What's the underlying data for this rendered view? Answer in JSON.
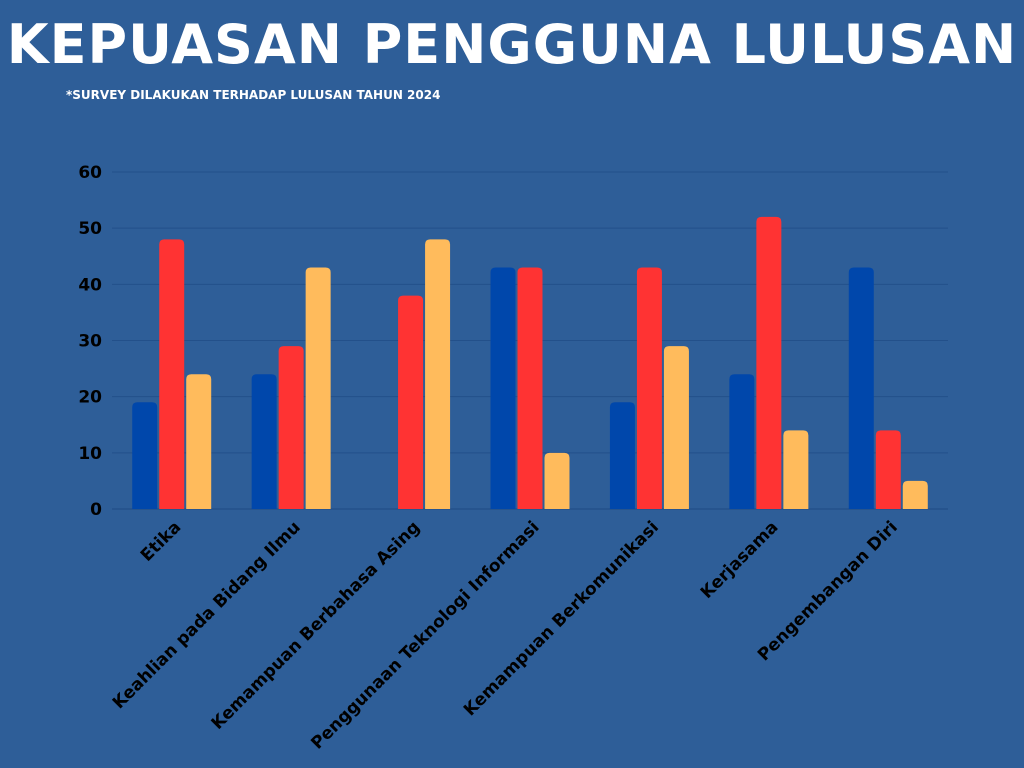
{
  "header": {
    "title": "KEPUASAN PENGGUNA LULUSAN",
    "subtitle": "*SURVEY DILAKUKAN TERHADAP LULUSAN TAHUN 2024"
  },
  "colors": {
    "background": "#2e5e98",
    "gridline": "#23508a",
    "series": [
      "#0047ab",
      "#ff3333",
      "#ffbb5c"
    ]
  },
  "chart_data": {
    "type": "bar",
    "title": "KEPUASAN PENGGUNA LULUSAN",
    "subtitle": "*SURVEY DILAKUKAN TERHADAP LULUSAN TAHUN 2024",
    "xlabel": "",
    "ylabel": "",
    "ylim": [
      0,
      60
    ],
    "yticks": [
      0,
      10,
      20,
      30,
      40,
      50,
      60
    ],
    "grid": true,
    "legend": "none",
    "categories": [
      "Etika",
      "Keahlian pada Bidang Ilmu",
      "Kemampuan Berbahasa Asing",
      "Penggunaan Teknologi Informasi",
      "Kemampuan Berkomunikasi",
      "Kerjasama",
      "Pengembangan Diri"
    ],
    "series": [
      {
        "color": "#0047ab",
        "values": [
          19,
          24,
          0,
          43,
          19,
          24,
          43
        ]
      },
      {
        "color": "#ff3333",
        "values": [
          48,
          29,
          38,
          43,
          43,
          52,
          14
        ]
      },
      {
        "color": "#ffbb5c",
        "values": [
          24,
          43,
          48,
          10,
          29,
          14,
          5
        ]
      }
    ]
  }
}
